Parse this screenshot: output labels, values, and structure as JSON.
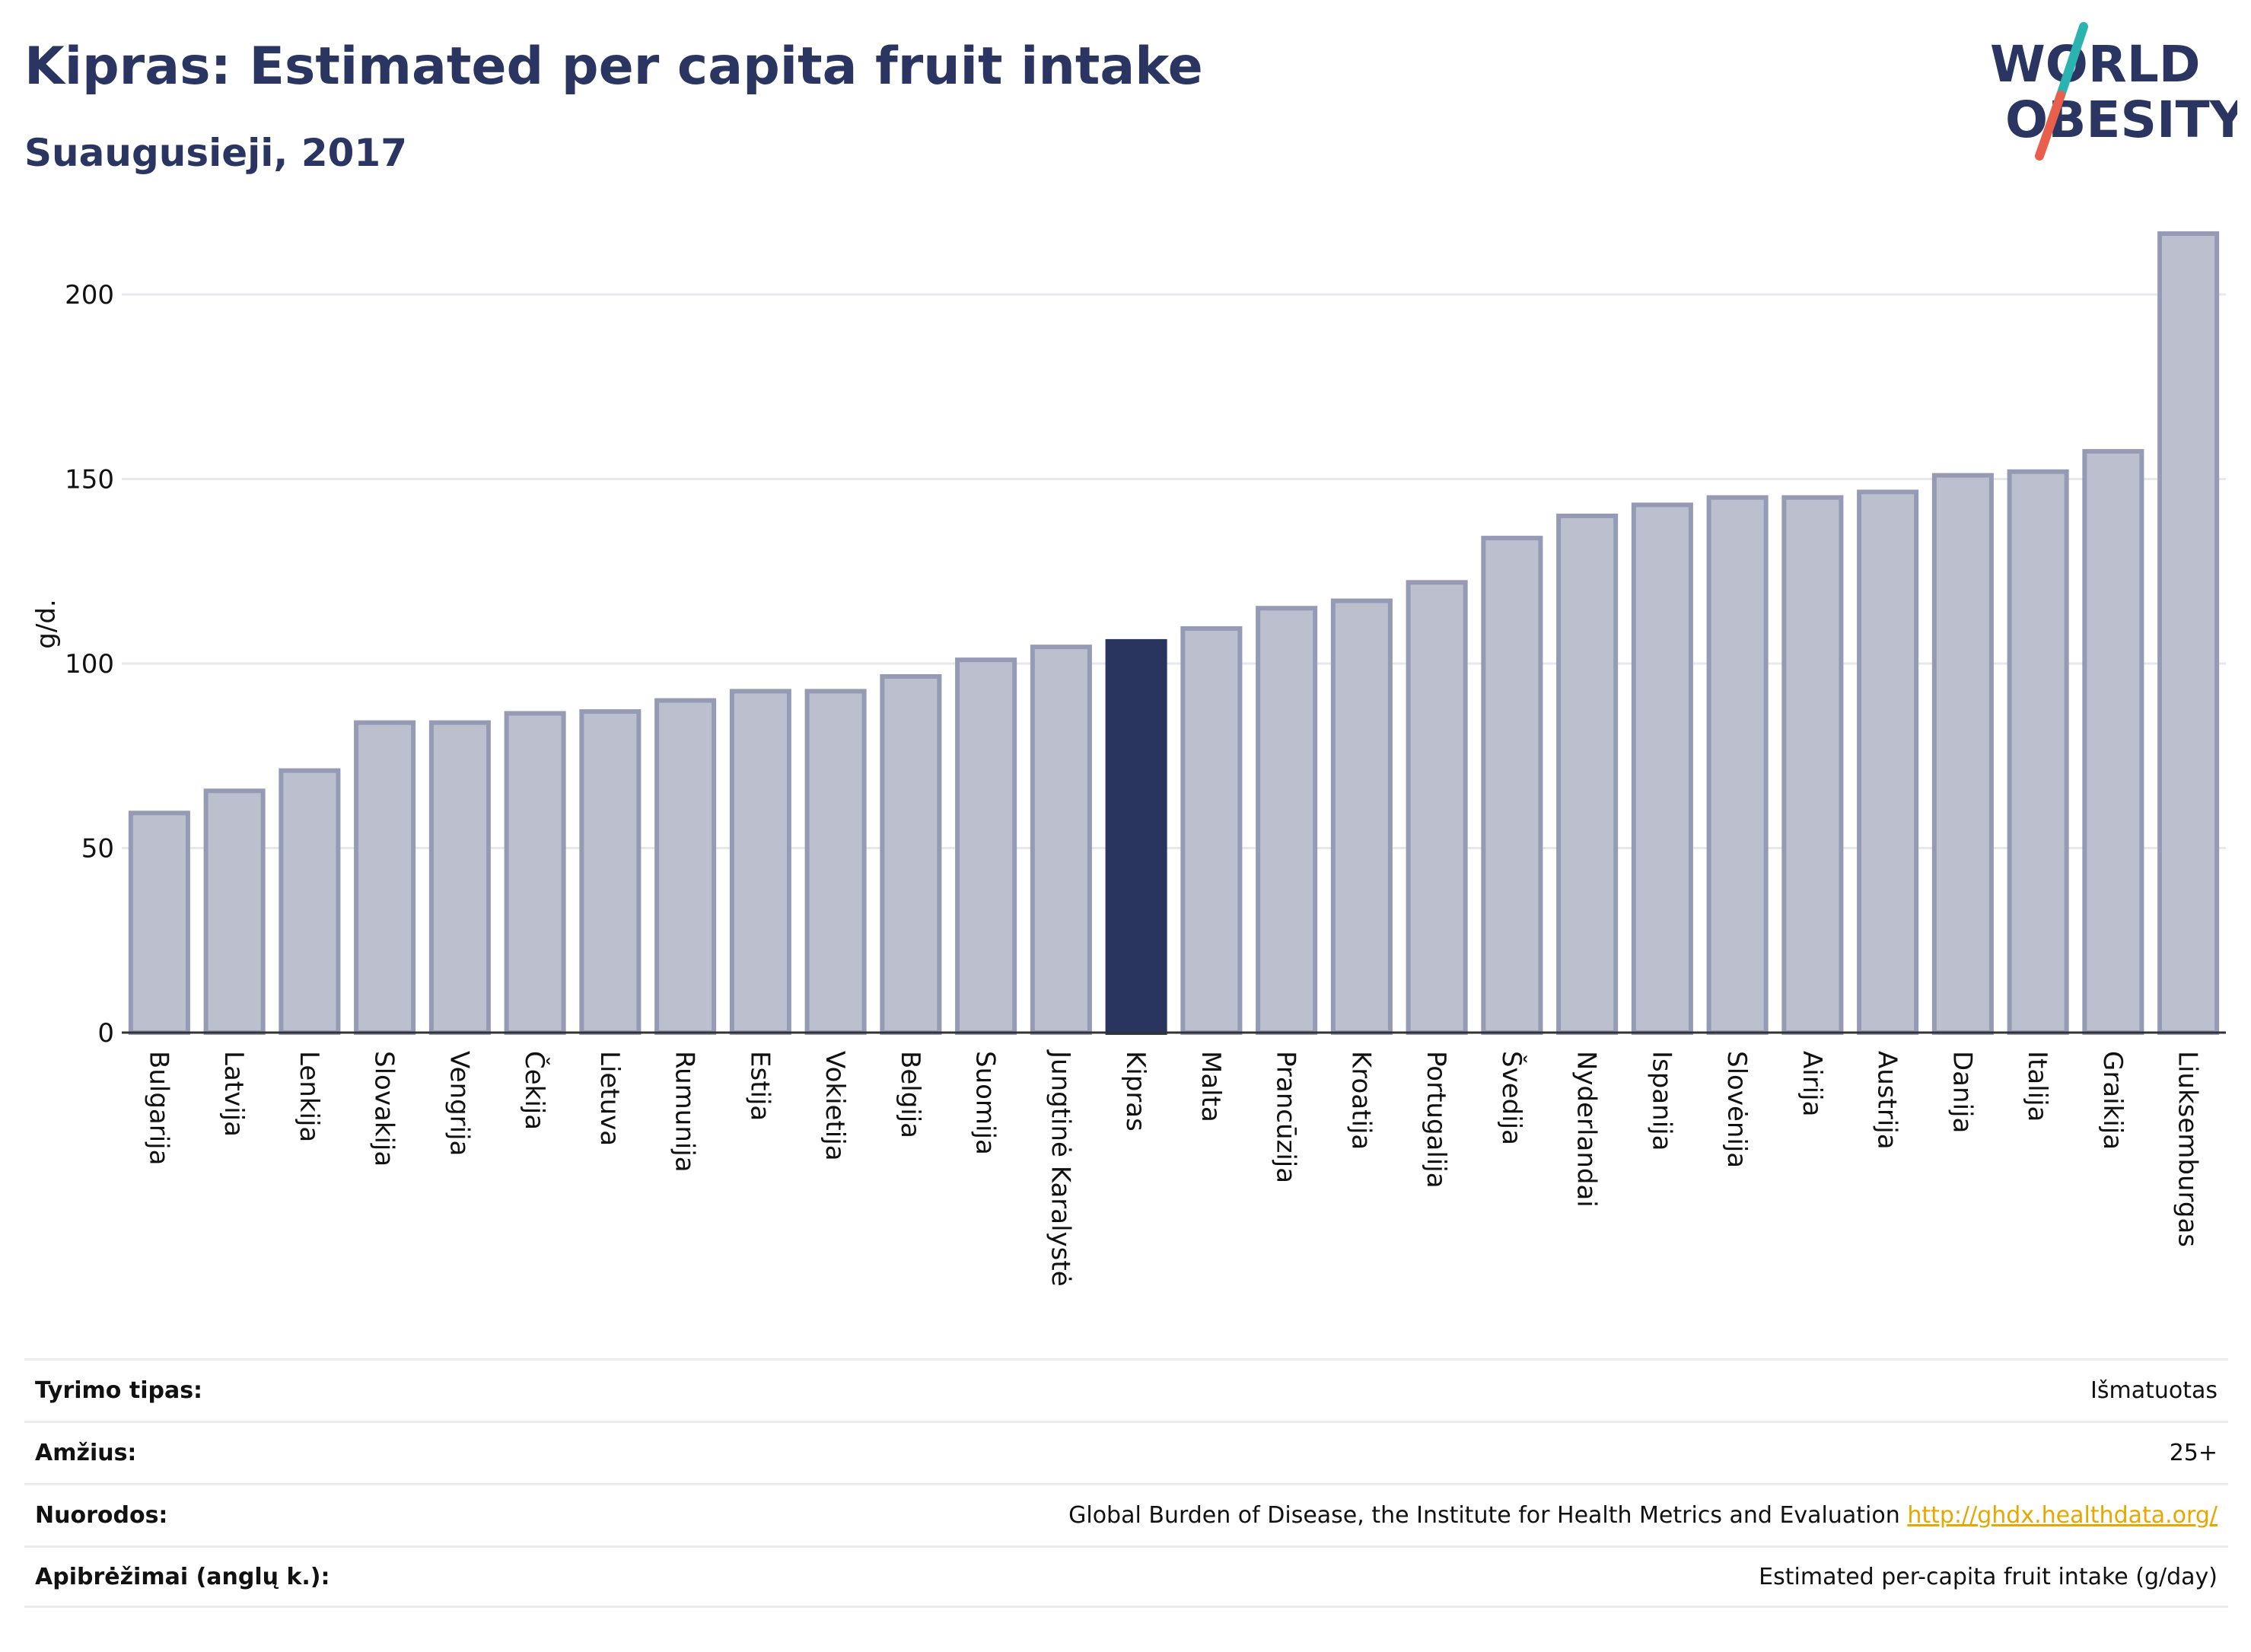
{
  "header": {
    "title": "Kipras: Estimated per capita fruit intake",
    "subtitle": "Suaugusieji, 2017"
  },
  "logo": {
    "line1": "WORLD",
    "line2": "OBESITY",
    "accent_teal": "#2bb3b1",
    "accent_red": "#e8604c",
    "text_color": "#2b3561"
  },
  "colors": {
    "bar_default": "#bcc0ce",
    "bar_border": "#959ab5",
    "bar_highlight": "#2a355f",
    "grid": "#e6e8ee",
    "axis": "#333333"
  },
  "chart_data": {
    "type": "bar",
    "ylabel": "g/d.",
    "xlabel": "",
    "ylim": [
      0,
      220
    ],
    "yticks": [
      0,
      50,
      100,
      150,
      200
    ],
    "grid": true,
    "highlight": "Kipras",
    "categories": [
      "Bulgarija",
      "Latvija",
      "Lenkija",
      "Slovakija",
      "Vengrija",
      "Čekija",
      "Lietuva",
      "Rumunija",
      "Estija",
      "Vokietija",
      "Belgija",
      "Suomija",
      "Jungtinė Karalystė",
      "Kipras",
      "Malta",
      "Prancūzija",
      "Kroatija",
      "Portugalija",
      "Švedija",
      "Nyderlandai",
      "Ispanija",
      "Slovėnija",
      "Airija",
      "Austrija",
      "Danija",
      "Italija",
      "Graikija",
      "Liuksemburgas"
    ],
    "values": [
      59.5,
      65.5,
      71,
      84,
      84,
      86.5,
      87,
      90,
      92.5,
      92.5,
      96.5,
      101,
      104.5,
      106,
      109.5,
      115,
      117,
      122,
      134,
      140,
      143,
      145,
      145,
      146.5,
      151,
      152,
      157.5,
      216.5
    ]
  },
  "info": {
    "rows": [
      {
        "label": "Tyrimo tipas:",
        "value": "Išmatuotas"
      },
      {
        "label": "Amžius:",
        "value": "25+"
      },
      {
        "label": "Nuorodos:",
        "value": "Global Burden of Disease, the Institute for Health Metrics and Evaluation",
        "link": "http://ghdx.healthdata.org/"
      },
      {
        "label": "Apibrėžimai (anglų k.):",
        "value": "Estimated per-capita fruit intake (g/day)"
      }
    ]
  }
}
